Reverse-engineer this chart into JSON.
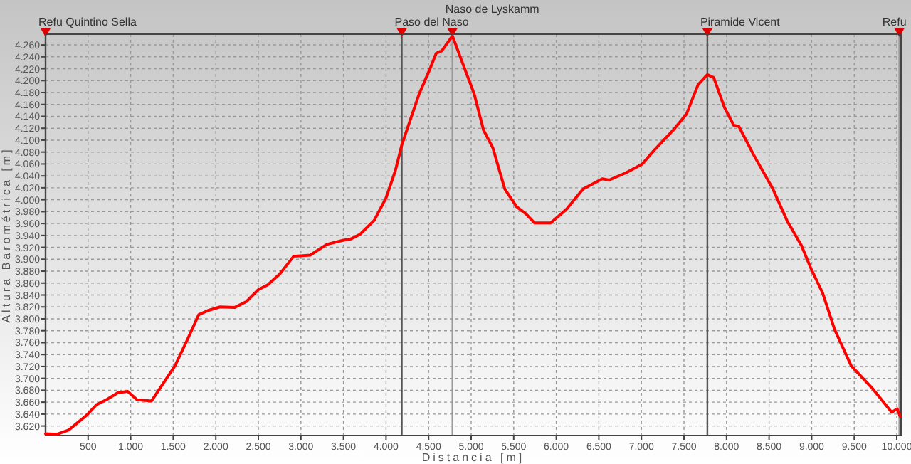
{
  "chart_data": {
    "type": "line",
    "xlabel": "Distancia [m]",
    "ylabel": "Altura Barométrica [m]",
    "x": [
      0,
      130,
      270,
      380,
      490,
      600,
      715,
      850,
      965,
      1075,
      1245,
      1380,
      1520,
      1660,
      1800,
      1910,
      2050,
      2220,
      2360,
      2500,
      2610,
      2750,
      2915,
      3110,
      3305,
      3500,
      3585,
      3695,
      3860,
      4000,
      4110,
      4185,
      4280,
      4390,
      4505,
      4590,
      4655,
      4780,
      4895,
      5035,
      5145,
      5255,
      5395,
      5535,
      5645,
      5745,
      5935,
      6120,
      6315,
      6540,
      6620,
      6815,
      7010,
      7150,
      7375,
      7530,
      7665,
      7775,
      7850,
      7975,
      8085,
      8145,
      8320,
      8545,
      8710,
      8880,
      8990,
      9130,
      9270,
      9465,
      9715,
      9940,
      10005,
      10040
    ],
    "series": [
      {
        "color": "#ff0000",
        "values": [
          3607,
          3606,
          3613,
          3626,
          3639,
          3656,
          3664,
          3676,
          3678,
          3664,
          3662,
          3691,
          3721,
          3763,
          3807,
          3814,
          3820,
          3819,
          3829,
          3849,
          3857,
          3875,
          3905,
          3907,
          3925,
          3932,
          3934,
          3942,
          3965,
          4003,
          4049,
          4092,
          4132,
          4178,
          4216,
          4246,
          4250,
          4275,
          4231,
          4178,
          4117,
          4087,
          4018,
          3988,
          3976,
          3961,
          3961,
          3984,
          4018,
          4035,
          4033,
          4045,
          4060,
          4083,
          4117,
          4144,
          4193,
          4210,
          4205,
          4155,
          4125,
          4123,
          4075,
          4018,
          3965,
          3923,
          3885,
          3843,
          3782,
          3721,
          3683,
          3643,
          3649,
          3636
        ]
      }
    ],
    "xlim": [
      0,
      10050
    ],
    "ylim": [
      3604,
      4278
    ],
    "xticks": [
      {
        "value": 500,
        "label": "500"
      },
      {
        "value": 1000,
        "label": "1.000"
      },
      {
        "value": 1500,
        "label": "1.500"
      },
      {
        "value": 2000,
        "label": "2.000"
      },
      {
        "value": 2500,
        "label": "2.500"
      },
      {
        "value": 3000,
        "label": "3.000"
      },
      {
        "value": 3500,
        "label": "3.500"
      },
      {
        "value": 4000,
        "label": "4.000"
      },
      {
        "value": 4500,
        "label": "4.500"
      },
      {
        "value": 5000,
        "label": "5.000"
      },
      {
        "value": 5500,
        "label": "5.500"
      },
      {
        "value": 6000,
        "label": "6.000"
      },
      {
        "value": 6500,
        "label": "6.500"
      },
      {
        "value": 7000,
        "label": "7.000"
      },
      {
        "value": 7500,
        "label": "7.500"
      },
      {
        "value": 8000,
        "label": "8.000"
      },
      {
        "value": 8500,
        "label": "8.500"
      },
      {
        "value": 9000,
        "label": "9.000"
      },
      {
        "value": 9500,
        "label": "9.500"
      },
      {
        "value": 10000,
        "label": "10.000"
      }
    ],
    "yticks": [
      {
        "value": 3620,
        "label": "3.620"
      },
      {
        "value": 3640,
        "label": "3.640"
      },
      {
        "value": 3660,
        "label": "3.660"
      },
      {
        "value": 3680,
        "label": "3.680"
      },
      {
        "value": 3700,
        "label": "3.700"
      },
      {
        "value": 3720,
        "label": "3.720"
      },
      {
        "value": 3740,
        "label": "3.740"
      },
      {
        "value": 3760,
        "label": "3.760"
      },
      {
        "value": 3780,
        "label": "3.780"
      },
      {
        "value": 3800,
        "label": "3.800"
      },
      {
        "value": 3820,
        "label": "3.820"
      },
      {
        "value": 3840,
        "label": "3.840"
      },
      {
        "value": 3860,
        "label": "3.860"
      },
      {
        "value": 3880,
        "label": "3.880"
      },
      {
        "value": 3900,
        "label": "3.900"
      },
      {
        "value": 3920,
        "label": "3.920"
      },
      {
        "value": 3940,
        "label": "3.940"
      },
      {
        "value": 3960,
        "label": "3.960"
      },
      {
        "value": 3980,
        "label": "3.980"
      },
      {
        "value": 4000,
        "label": "4.000"
      },
      {
        "value": 4020,
        "label": "4.020"
      },
      {
        "value": 4040,
        "label": "4.040"
      },
      {
        "value": 4060,
        "label": "4.060"
      },
      {
        "value": 4080,
        "label": "4.080"
      },
      {
        "value": 4100,
        "label": "4.100"
      },
      {
        "value": 4120,
        "label": "4.120"
      },
      {
        "value": 4140,
        "label": "4.140"
      },
      {
        "value": 4160,
        "label": "4.160"
      },
      {
        "value": 4180,
        "label": "4.180"
      },
      {
        "value": 4200,
        "label": "4.200"
      },
      {
        "value": 4220,
        "label": "4.220"
      },
      {
        "value": 4240,
        "label": "4.240"
      },
      {
        "value": 4260,
        "label": "4.260"
      }
    ],
    "grid": true,
    "line_style": "solid",
    "marker": "none",
    "ref_lines": [
      {
        "axis": "x",
        "value": 0,
        "label": "Refu Quintino Sella",
        "color": "#555555"
      },
      {
        "axis": "x",
        "value": 4185,
        "label": "Paso del Naso",
        "color": "#555555"
      },
      {
        "axis": "x",
        "value": 4780,
        "label": "Naso de Lyskamm",
        "color": "#999999"
      },
      {
        "axis": "x",
        "value": 7775,
        "label": "Piramide Vicent",
        "color": "#555555"
      },
      {
        "axis": "x",
        "value": 10030,
        "label": "Refu",
        "color": "#999999"
      }
    ]
  }
}
